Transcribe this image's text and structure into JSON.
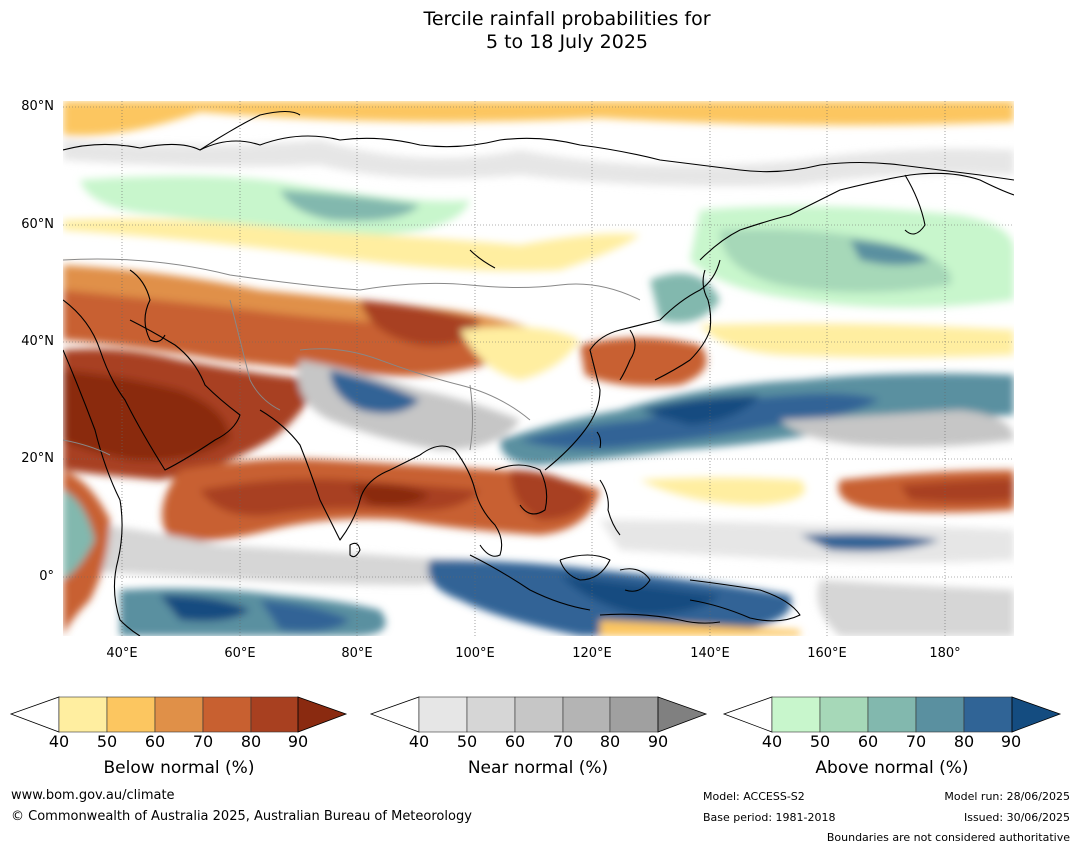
{
  "title": {
    "line1": "Tercile rainfall probabilities for",
    "line2": "5 to 18 July 2025"
  },
  "axes": {
    "lat_ticks": [
      "80°N",
      "60°N",
      "40°N",
      "20°N",
      "0°"
    ],
    "lon_ticks": [
      "40°E",
      "60°E",
      "80°E",
      "100°E",
      "120°E",
      "140°E",
      "160°E",
      "180°"
    ],
    "lat_range": [
      -10,
      80
    ],
    "lon_range": [
      30,
      192
    ]
  },
  "colorbars": [
    {
      "title": "Below normal (%)",
      "ticks": [
        "40",
        "50",
        "60",
        "70",
        "80",
        "90"
      ],
      "colors": [
        "#ffeea0",
        "#fcc660",
        "#e09048",
        "#c86030",
        "#a84020",
        "#8a2a10"
      ]
    },
    {
      "title": "Near normal (%)",
      "ticks": [
        "40",
        "50",
        "60",
        "70",
        "80",
        "90"
      ],
      "colors": [
        "#e6e6e6",
        "#d6d6d6",
        "#c6c6c6",
        "#b4b4b4",
        "#a0a0a0",
        "#808080"
      ]
    },
    {
      "title": "Above normal (%)",
      "ticks": [
        "40",
        "50",
        "60",
        "70",
        "80",
        "90"
      ],
      "colors": [
        "#c8f6cc",
        "#a6d8b8",
        "#82b8ae",
        "#5a90a0",
        "#306496",
        "#144c80"
      ]
    }
  ],
  "footer": {
    "website": "www.bom.gov.au/climate",
    "copyright": "© Commonwealth of Australia 2025, Australian Bureau of Meteorology",
    "model": "Model: ACCESS-S2",
    "base_period": "Base period: 1981-2018",
    "model_run": "Model run: 28/06/2025",
    "issued": "Issued: 30/06/2025",
    "disclaimer": "Boundaries are not considered authoritative"
  }
}
